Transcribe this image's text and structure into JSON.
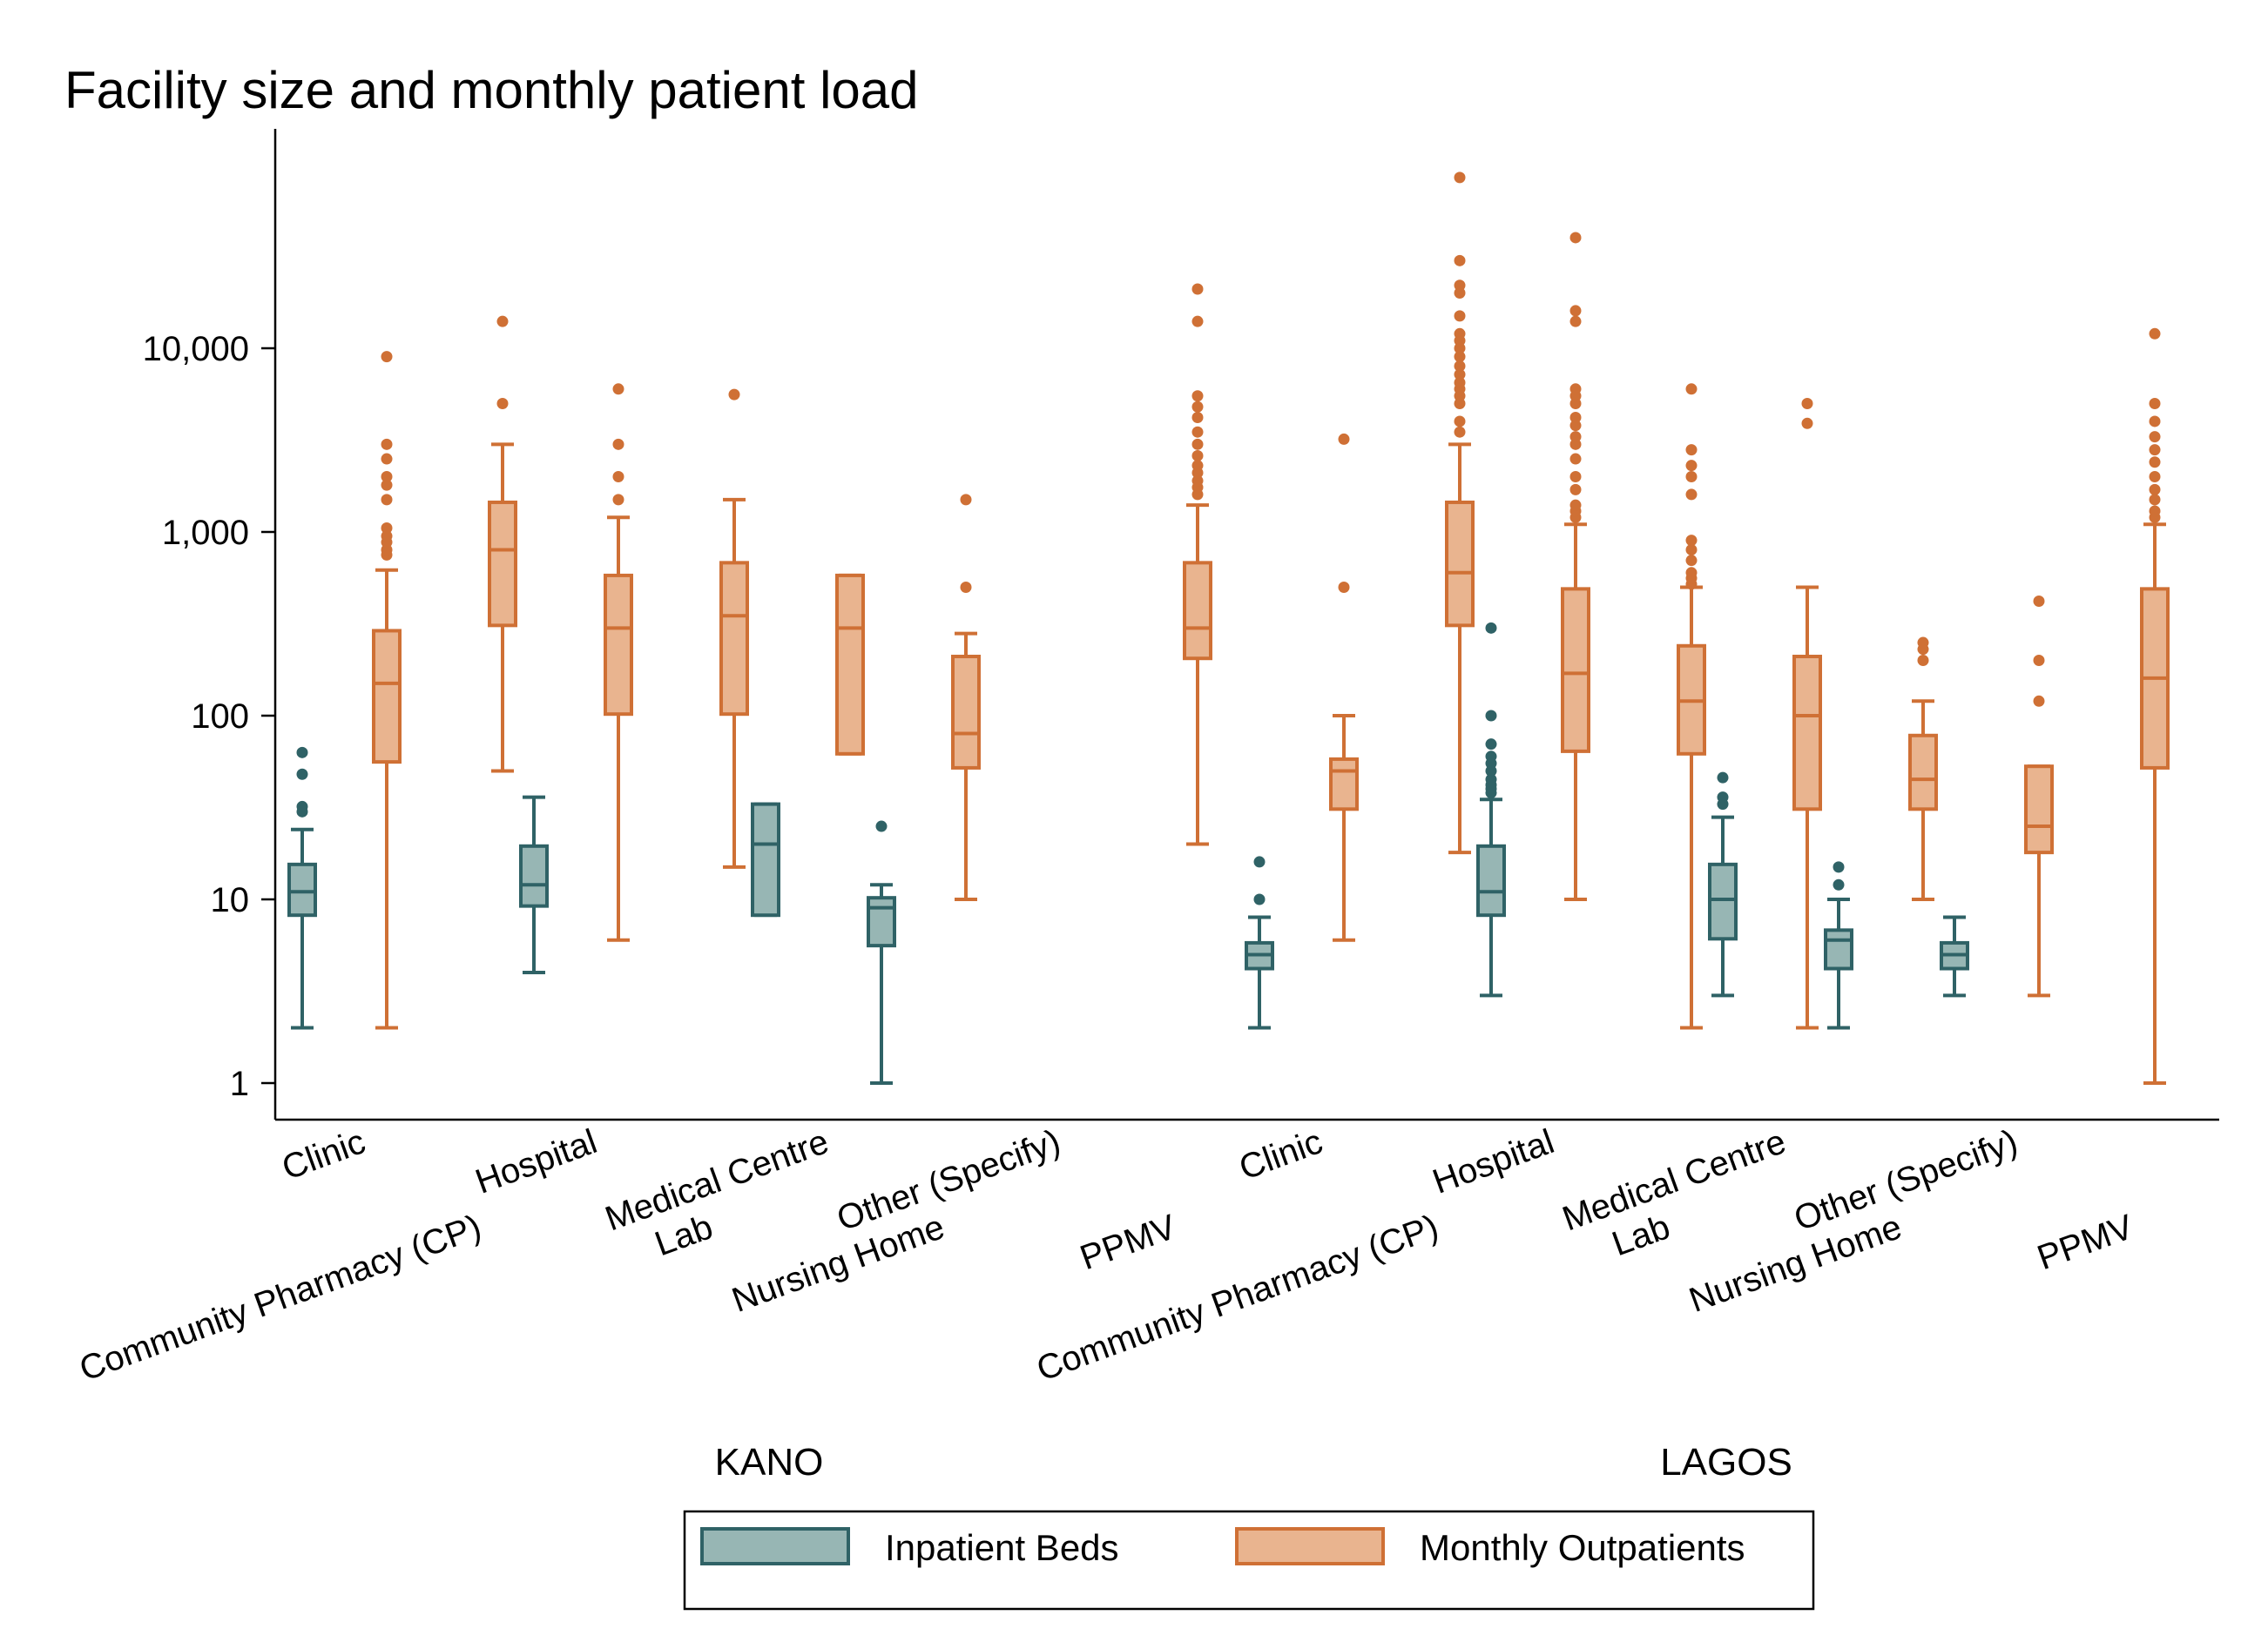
{
  "colors": {
    "beds_fill": "#97b6b4",
    "beds_stroke": "#2f6266",
    "outpatients_fill": "#e9b48f",
    "outpatients_stroke": "#cf7035",
    "axis": "#000000"
  },
  "chart_data": {
    "type": "boxplot",
    "title": "Facility size and monthly patient load",
    "yscale": "log",
    "ylim": [
      0.55,
      200000
    ],
    "yticks": [
      {
        "value": 1,
        "label": "1"
      },
      {
        "value": 10,
        "label": "10"
      },
      {
        "value": 100,
        "label": "100"
      },
      {
        "value": 1000,
        "label": "1,000"
      },
      {
        "value": 10000,
        "label": "10,000"
      }
    ],
    "grid": false,
    "legend_position": "bottom",
    "series": [
      {
        "key": "beds",
        "name": "Inpatient Beds"
      },
      {
        "key": "outpatients",
        "name": "Monthly Outpatients"
      }
    ],
    "groups": [
      {
        "name": "KANO",
        "categories": [
          {
            "label": "Clinic",
            "beds": {
              "q1": 8.2,
              "median": 11,
              "q3": 15.5,
              "whisker_low": 2,
              "whisker_high": 24,
              "outliers": [
                30,
                32,
                48,
                63
              ]
            },
            "outpatients": {
              "q1": 56,
              "median": 150,
              "q3": 290,
              "whisker_low": 2,
              "whisker_high": 620,
              "outliers": [
                750,
                800,
                880,
                950,
                1050,
                1500,
                1800,
                2000,
                2500,
                3000,
                9000
              ]
            }
          },
          {
            "label": "Community Pharmacy (CP)",
            "beds": null,
            "outpatients": {
              "q1": 310,
              "median": 800,
              "q3": 1450,
              "whisker_low": 50,
              "whisker_high": 3000,
              "outliers": [
                5000,
                14000
              ]
            }
          },
          {
            "label": "Hospital",
            "beds": {
              "q1": 9.2,
              "median": 12,
              "q3": 19.5,
              "whisker_low": 4,
              "whisker_high": 36,
              "outliers": []
            },
            "outpatients": {
              "q1": 102,
              "median": 300,
              "q3": 580,
              "whisker_low": 6,
              "whisker_high": 1200,
              "outliers": [
                1500,
                2000,
                3000,
                6000
              ]
            }
          },
          {
            "label": "Lab",
            "beds": null,
            "outpatients": {
              "q1": 102,
              "median": 350,
              "q3": 680,
              "whisker_low": 15,
              "whisker_high": 1500,
              "outliers": [
                5600
              ]
            }
          },
          {
            "label": "Medical Centre",
            "beds": {
              "q1": 8.2,
              "median": 20,
              "q3": 33,
              "whisker_low": 8.2,
              "whisker_high": 33,
              "outliers": []
            },
            "outpatients": {
              "q1": 62,
              "median": 300,
              "q3": 580,
              "whisker_low": 62,
              "whisker_high": 580,
              "outliers": []
            }
          },
          {
            "label": "Nursing Home",
            "beds": {
              "q1": 5.6,
              "median": 9,
              "q3": 10.2,
              "whisker_low": 1,
              "whisker_high": 12,
              "outliers": [
                25
              ]
            },
            "outpatients": {
              "q1": 52,
              "median": 80,
              "q3": 210,
              "whisker_low": 10,
              "whisker_high": 280,
              "outliers": [
                500,
                1500
              ]
            }
          },
          {
            "label": "Other (Specify)",
            "beds": null,
            "outpatients": null
          },
          {
            "label": "PPMV",
            "beds": null,
            "outpatients": {
              "q1": 205,
              "median": 300,
              "q3": 680,
              "whisker_low": 20,
              "whisker_high": 1400,
              "outliers": [
                1600,
                1750,
                1900,
                2100,
                2300,
                2600,
                3000,
                3500,
                4200,
                4800,
                5500,
                14000,
                21000
              ]
            }
          }
        ]
      },
      {
        "name": "LAGOS",
        "categories": [
          {
            "label": "Clinic",
            "beds": {
              "q1": 4.2,
              "median": 5,
              "q3": 5.8,
              "whisker_low": 2,
              "whisker_high": 8,
              "outliers": [
                10,
                16
              ]
            },
            "outpatients": {
              "q1": 31,
              "median": 50,
              "q3": 58,
              "whisker_low": 6,
              "whisker_high": 100,
              "outliers": [
                500,
                3200
              ]
            }
          },
          {
            "label": "Community Pharmacy (CP)",
            "beds": null,
            "outpatients": {
              "q1": 310,
              "median": 600,
              "q3": 1450,
              "whisker_low": 18,
              "whisker_high": 3000,
              "outliers": [
                3500,
                4000,
                5000,
                5500,
                6000,
                6500,
                7200,
                8000,
                9000,
                10000,
                11000,
                12000,
                15000,
                20000,
                22000,
                30000,
                85000
              ]
            }
          },
          {
            "label": "Hospital",
            "beds": {
              "q1": 8.2,
              "median": 11,
              "q3": 19.5,
              "whisker_low": 3,
              "whisker_high": 35,
              "outliers": [
                38,
                40,
                42,
                45,
                50,
                55,
                60,
                70,
                100,
                300
              ]
            },
            "outpatients": {
              "q1": 64,
              "median": 170,
              "q3": 490,
              "whisker_low": 10,
              "whisker_high": 1100,
              "outliers": [
                1200,
                1300,
                1400,
                1700,
                2000,
                2500,
                3000,
                3300,
                3800,
                4200,
                5000,
                5500,
                6000,
                14000,
                16000,
                40000
              ]
            }
          },
          {
            "label": "Lab",
            "beds": null,
            "outpatients": {
              "q1": 62,
              "median": 120,
              "q3": 240,
              "whisker_low": 2,
              "whisker_high": 500,
              "outliers": [
                520,
                560,
                600,
                700,
                800,
                900,
                1600,
                2000,
                2300,
                2800,
                6000
              ]
            }
          },
          {
            "label": "Medical Centre",
            "beds": {
              "q1": 6.1,
              "median": 10,
              "q3": 15.5,
              "whisker_low": 3,
              "whisker_high": 28,
              "outliers": [
                33,
                36,
                46
              ]
            },
            "outpatients": {
              "q1": 31,
              "median": 100,
              "q3": 210,
              "whisker_low": 2,
              "whisker_high": 500,
              "outliers": [
                3900,
                5000
              ]
            }
          },
          {
            "label": "Nursing Home",
            "beds": {
              "q1": 4.2,
              "median": 6,
              "q3": 6.8,
              "whisker_low": 2,
              "whisker_high": 10,
              "outliers": [
                12,
                15
              ]
            },
            "outpatients": {
              "q1": 31,
              "median": 45,
              "q3": 78,
              "whisker_low": 10,
              "whisker_high": 120,
              "outliers": [
                200,
                230,
                250
              ]
            }
          },
          {
            "label": "Other (Specify)",
            "beds": {
              "q1": 4.2,
              "median": 5,
              "q3": 5.8,
              "whisker_low": 3,
              "whisker_high": 8,
              "outliers": []
            },
            "outpatients": {
              "q1": 18,
              "median": 25,
              "q3": 53,
              "whisker_low": 3,
              "whisker_high": 53,
              "outliers": [
                120,
                200,
                420
              ]
            }
          },
          {
            "label": "PPMV",
            "beds": null,
            "outpatients": {
              "q1": 52,
              "median": 160,
              "q3": 490,
              "whisker_low": 1,
              "whisker_high": 1100,
              "outliers": [
                1200,
                1300,
                1500,
                1700,
                2000,
                2400,
                2800,
                3300,
                4000,
                5000,
                12000
              ]
            }
          }
        ]
      }
    ]
  }
}
